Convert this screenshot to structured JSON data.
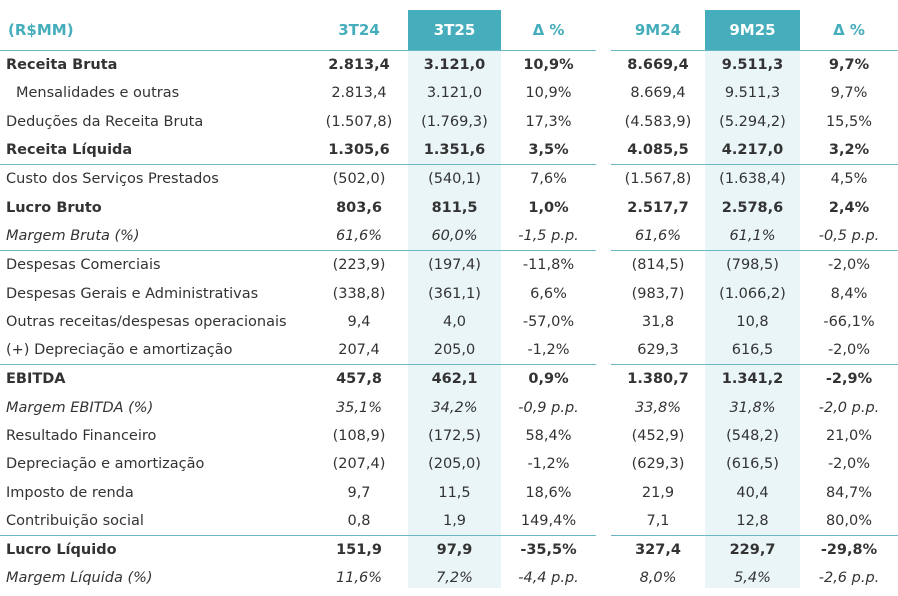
{
  "header": {
    "unit": "(R$MM)",
    "columns": [
      "3T24",
      "3T25",
      "Δ %",
      "9M24",
      "9M25",
      "Δ %"
    ]
  },
  "colors": {
    "accent": "#45adbb",
    "highlight_bg": "#eaf5f8",
    "text": "#333333"
  },
  "rows": [
    {
      "label": "Receita Bruta",
      "values": [
        "2.813,4",
        "3.121,0",
        "10,9%",
        "8.669,4",
        "9.511,3",
        "9,7%"
      ],
      "style": "bold"
    },
    {
      "label": "Mensalidades e outras",
      "values": [
        "2.813,4",
        "3.121,0",
        "10,9%",
        "8.669,4",
        "9.511,3",
        "9,7%"
      ],
      "style": "indent"
    },
    {
      "label": "Deduções da Receita Bruta",
      "values": [
        "(1.507,8)",
        "(1.769,3)",
        "17,3%",
        "(4.583,9)",
        "(5.294,2)",
        "15,5%"
      ],
      "style": ""
    },
    {
      "label": "Receita Líquida",
      "values": [
        "1.305,6",
        "1.351,6",
        "3,5%",
        "4.085,5",
        "4.217,0",
        "3,2%"
      ],
      "style": "bold line"
    },
    {
      "label": "Custo dos Serviços Prestados",
      "values": [
        "(502,0)",
        "(540,1)",
        "7,6%",
        "(1.567,8)",
        "(1.638,4)",
        "4,5%"
      ],
      "style": ""
    },
    {
      "label": "Lucro Bruto",
      "values": [
        "803,6",
        "811,5",
        "1,0%",
        "2.517,7",
        "2.578,6",
        "2,4%"
      ],
      "style": "bold"
    },
    {
      "label": "Margem Bruta (%)",
      "values": [
        "61,6%",
        "60,0%",
        "-1,5 p.p.",
        "61,6%",
        "61,1%",
        "-0,5 p.p."
      ],
      "style": "ital line"
    },
    {
      "label": "Despesas Comerciais",
      "values": [
        "(223,9)",
        "(197,4)",
        "-11,8%",
        "(814,5)",
        "(798,5)",
        "-2,0%"
      ],
      "style": ""
    },
    {
      "label": "Despesas Gerais e Administrativas",
      "values": [
        "(338,8)",
        "(361,1)",
        "6,6%",
        "(983,7)",
        "(1.066,2)",
        "8,4%"
      ],
      "style": ""
    },
    {
      "label": "Outras receitas/despesas operacionais",
      "values": [
        "9,4",
        "4,0",
        "-57,0%",
        "31,8",
        "10,8",
        "-66,1%"
      ],
      "style": ""
    },
    {
      "label": "(+) Depreciação e amortização",
      "values": [
        "207,4",
        "205,0",
        "-1,2%",
        "629,3",
        "616,5",
        "-2,0%"
      ],
      "style": "line"
    },
    {
      "label": "EBITDA",
      "values": [
        "457,8",
        "462,1",
        "0,9%",
        "1.380,7",
        "1.341,2",
        "-2,9%"
      ],
      "style": "bold"
    },
    {
      "label": "Margem EBITDA (%)",
      "values": [
        "35,1%",
        "34,2%",
        "-0,9 p.p.",
        "33,8%",
        "31,8%",
        "-2,0 p.p."
      ],
      "style": "ital"
    },
    {
      "label": "Resultado Financeiro",
      "values": [
        "(108,9)",
        "(172,5)",
        "58,4%",
        "(452,9)",
        "(548,2)",
        "21,0%"
      ],
      "style": ""
    },
    {
      "label": "Depreciação e amortização",
      "values": [
        "(207,4)",
        "(205,0)",
        "-1,2%",
        "(629,3)",
        "(616,5)",
        "-2,0%"
      ],
      "style": ""
    },
    {
      "label": "Imposto de renda",
      "values": [
        "9,7",
        "11,5",
        "18,6%",
        "21,9",
        "40,4",
        "84,7%"
      ],
      "style": ""
    },
    {
      "label": "Contribuição social",
      "values": [
        "0,8",
        "1,9",
        "149,4%",
        "7,1",
        "12,8",
        "80,0%"
      ],
      "style": "line"
    },
    {
      "label": "Lucro Líquido",
      "values": [
        "151,9",
        "97,9",
        "-35,5%",
        "327,4",
        "229,7",
        "-29,8%"
      ],
      "style": "bold"
    },
    {
      "label": "Margem Líquida (%)",
      "values": [
        "11,6%",
        "7,2%",
        "-4,4 p.p.",
        "8,0%",
        "5,4%",
        "-2,6 p.p."
      ],
      "style": "ital"
    }
  ]
}
